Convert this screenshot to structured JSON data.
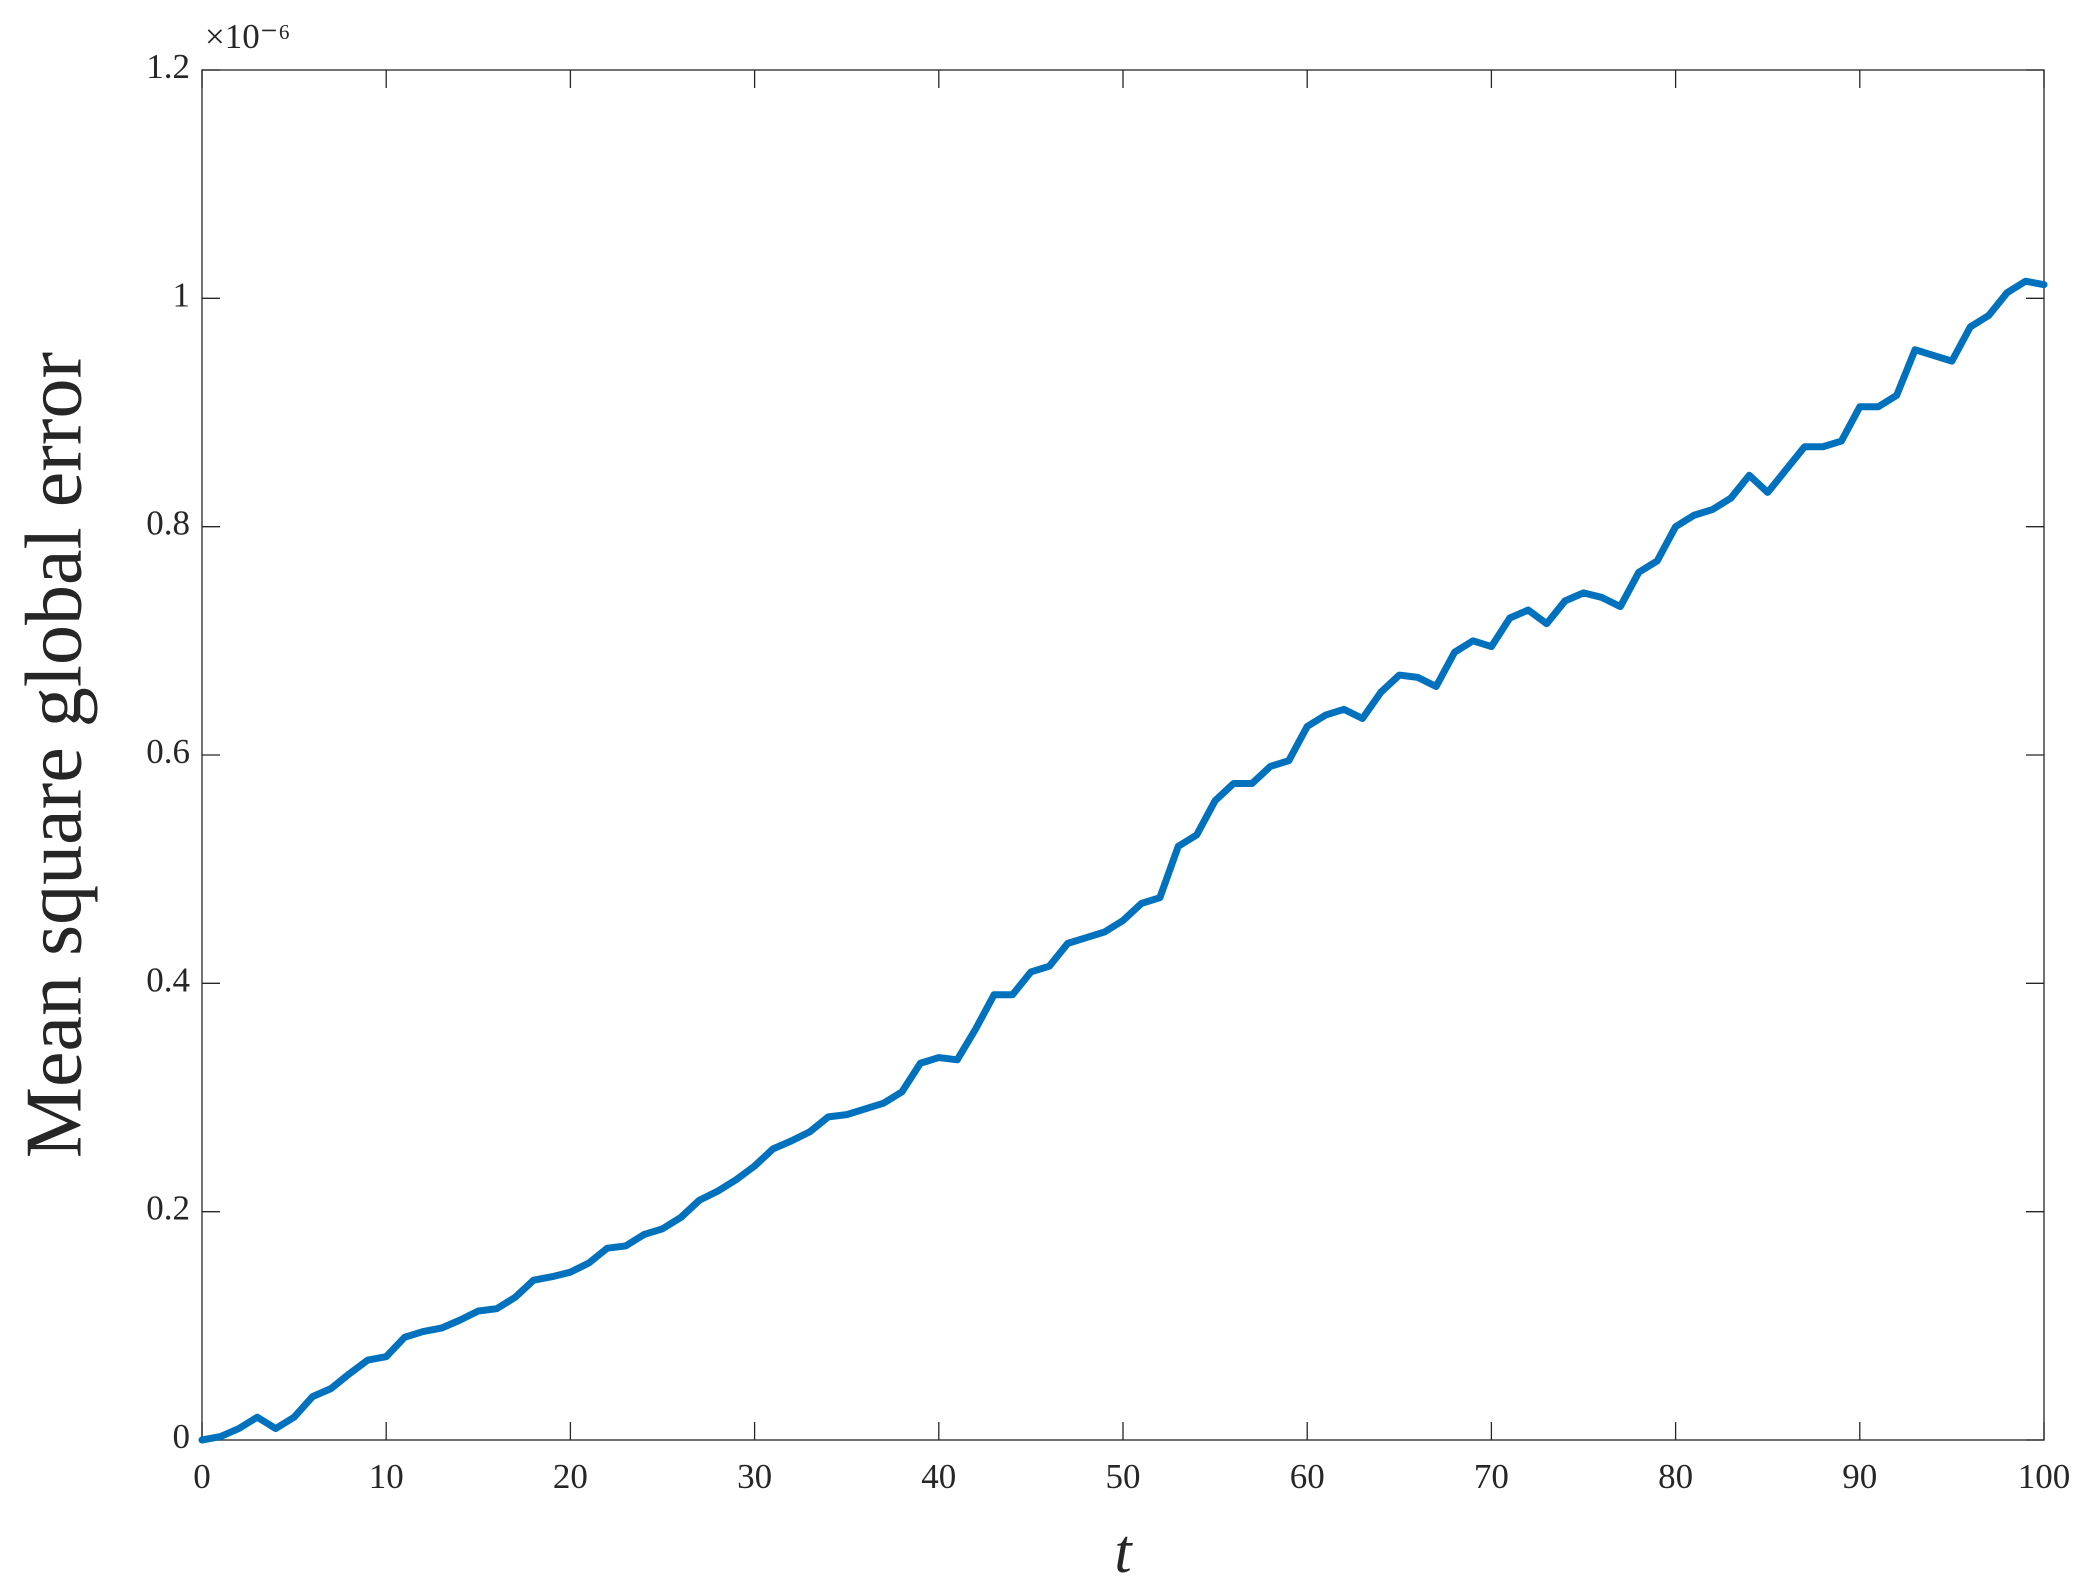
{
  "chart_data": {
    "type": "line",
    "x_label": "t",
    "y_label": "Mean square global error",
    "y_scale_label": "×10⁻⁶",
    "x": [
      0,
      1,
      2,
      3,
      4,
      5,
      6,
      7,
      8,
      9,
      10,
      11,
      12,
      13,
      14,
      15,
      16,
      17,
      18,
      19,
      20,
      21,
      22,
      23,
      24,
      25,
      26,
      27,
      28,
      29,
      30,
      31,
      32,
      33,
      34,
      35,
      36,
      37,
      38,
      39,
      40,
      41,
      42,
      43,
      44,
      45,
      46,
      47,
      48,
      49,
      50,
      51,
      52,
      53,
      54,
      55,
      56,
      57,
      58,
      59,
      60,
      61,
      62,
      63,
      64,
      65,
      66,
      67,
      68,
      69,
      70,
      71,
      72,
      73,
      74,
      75,
      76,
      77,
      78,
      79,
      80,
      81,
      82,
      83,
      84,
      85,
      86,
      87,
      88,
      89,
      90,
      91,
      92,
      93,
      94,
      95,
      96,
      97,
      98,
      99,
      100
    ],
    "series": [
      {
        "color": "#0072bd",
        "values": [
          0,
          0.003,
          0.01,
          0.02,
          0.01,
          0.02,
          0.038,
          0.045,
          0.058,
          0.07,
          0.073,
          0.09,
          0.095,
          0.098,
          0.105,
          0.113,
          0.115,
          0.125,
          0.14,
          0.143,
          0.147,
          0.155,
          0.168,
          0.17,
          0.18,
          0.185,
          0.195,
          0.21,
          0.218,
          0.228,
          0.24,
          0.255,
          0.262,
          0.27,
          0.283,
          0.285,
          0.29,
          0.295,
          0.305,
          0.33,
          0.335,
          0.333,
          0.36,
          0.39,
          0.39,
          0.41,
          0.415,
          0.435,
          0.44,
          0.445,
          0.455,
          0.47,
          0.475,
          0.52,
          0.53,
          0.56,
          0.575,
          0.575,
          0.59,
          0.595,
          0.625,
          0.635,
          0.64,
          0.632,
          0.655,
          0.67,
          0.668,
          0.66,
          0.69,
          0.7,
          0.695,
          0.72,
          0.727,
          0.715,
          0.735,
          0.742,
          0.738,
          0.73,
          0.76,
          0.77,
          0.8,
          0.81,
          0.815,
          0.825,
          0.845,
          0.83,
          0.85,
          0.87,
          0.87,
          0.875,
          0.905,
          0.905,
          0.915,
          0.955,
          0.95,
          0.945,
          0.975,
          0.985,
          1.005,
          1.015,
          1.012
        ]
      }
    ],
    "xlim": [
      0,
      100
    ],
    "xticks": [
      0,
      10,
      20,
      30,
      40,
      50,
      60,
      70,
      80,
      90,
      100
    ],
    "ylim": [
      0,
      1.2
    ],
    "yticks": [
      0,
      0.2,
      0.4,
      0.6,
      0.8,
      1,
      1.2
    ],
    "grid": false
  }
}
